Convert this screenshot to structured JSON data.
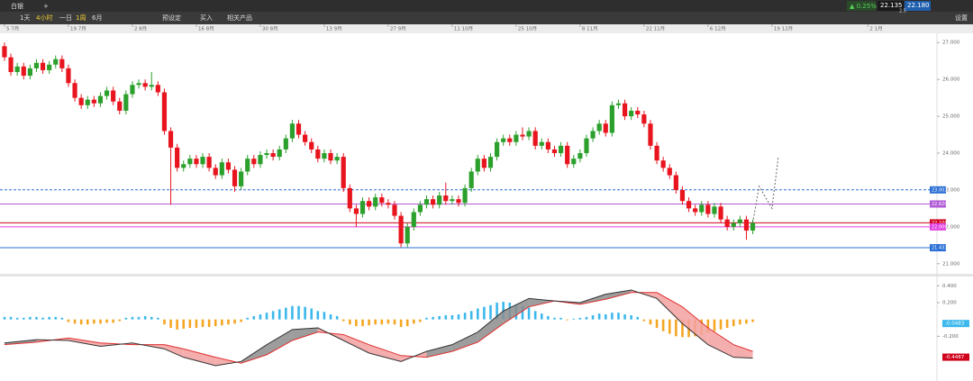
{
  "toolbar": {
    "symbol": "白银",
    "plus": "+",
    "intervals": [
      "1天",
      "4小时",
      "一日",
      "1周",
      "6月"
    ],
    "menu": [
      "预设定",
      "买入",
      "相关产品"
    ],
    "change": "▲ 0.25%",
    "sell": "22.135",
    "buy": "22.180",
    "spread": "2.5",
    "settings": "设置"
  },
  "chart_data": [
    {
      "type": "candlestick",
      "up_color": "#2ca02c",
      "down_color": "#e8141e",
      "xlim": [
        -0.7,
        145.8
      ],
      "xticks": [
        {
          "value": 0,
          "label": "5 7月"
        },
        {
          "value": 10,
          "label": "19 7月"
        },
        {
          "value": 20,
          "label": "2 8月"
        },
        {
          "value": 30,
          "label": "16 8月"
        },
        {
          "value": 40,
          "label": "30 8月"
        },
        {
          "value": 50,
          "label": "13 9月"
        },
        {
          "value": 60,
          "label": "27 9月"
        },
        {
          "value": 70,
          "label": "11 10月"
        },
        {
          "value": 80,
          "label": "25 10月"
        },
        {
          "value": 90,
          "label": "8 11月"
        },
        {
          "value": 100,
          "label": "22 11月"
        },
        {
          "value": 110,
          "label": "6 12月"
        },
        {
          "value": 120,
          "label": "19 12月"
        },
        {
          "value": 135,
          "label": "2 1月"
        }
      ],
      "ylim": [
        20.75,
        27.25
      ],
      "yticks": [
        {
          "value": 27,
          "label": "27.000"
        },
        {
          "value": 26,
          "label": "26.000"
        },
        {
          "value": 25,
          "label": "25.000"
        },
        {
          "value": 24,
          "label": "24.000"
        },
        {
          "value": 23,
          "label": "23.000"
        },
        {
          "value": 22,
          "label": "22.000"
        },
        {
          "value": 21,
          "label": "21.000"
        }
      ],
      "open": [
        26.9,
        26.6,
        26.2,
        26.35,
        26.1,
        26.3,
        26.45,
        26.25,
        26.4,
        26.55,
        26.3,
        25.9,
        25.5,
        25.3,
        25.45,
        25.35,
        25.55,
        25.7,
        25.4,
        25.15,
        25.6,
        25.85,
        25.9,
        25.8,
        25.85,
        25.65,
        24.6,
        24.15,
        23.6,
        23.7,
        23.85,
        23.7,
        23.9,
        23.6,
        23.4,
        23.75,
        23.55,
        23.1,
        23.5,
        23.85,
        23.7,
        23.95,
        24.0,
        23.9,
        24.1,
        24.4,
        24.8,
        24.5,
        24.3,
        24.1,
        23.85,
        24.0,
        23.8,
        23.9,
        23.05,
        22.5,
        22.35,
        22.7,
        22.55,
        22.8,
        22.65,
        22.6,
        22.3,
        21.55,
        22.0,
        22.4,
        22.6,
        22.75,
        22.6,
        22.85,
        22.7,
        22.75,
        22.65,
        23.05,
        23.5,
        23.85,
        23.6,
        23.9,
        24.3,
        24.4,
        24.3,
        24.5,
        24.45,
        24.6,
        24.2,
        24.3,
        24.1,
        24.0,
        24.2,
        23.7,
        23.85,
        24.0,
        24.4,
        24.6,
        24.8,
        24.55,
        25.3,
        25.35,
        25.0,
        25.15,
        25.05,
        24.8,
        24.2,
        23.8,
        23.6,
        23.4,
        23.0,
        22.7,
        22.5,
        22.4,
        22.6,
        22.35,
        22.55,
        22.2,
        22.0,
        22.1,
        22.2,
        21.9
      ],
      "high": [
        27.0,
        26.7,
        26.45,
        26.45,
        26.4,
        26.55,
        26.55,
        26.5,
        26.65,
        26.65,
        26.4,
        26.0,
        25.6,
        25.55,
        25.55,
        25.65,
        25.8,
        25.8,
        25.5,
        25.7,
        25.95,
        26.0,
        26.0,
        26.2,
        25.95,
        25.75,
        24.7,
        24.25,
        23.8,
        23.95,
        23.95,
        24.0,
        24.0,
        23.7,
        23.85,
        23.85,
        23.65,
        23.6,
        23.95,
        23.95,
        24.05,
        24.1,
        24.1,
        24.2,
        24.5,
        24.9,
        24.9,
        24.6,
        24.4,
        24.2,
        24.1,
        24.1,
        24.0,
        24.0,
        23.15,
        22.6,
        22.8,
        22.8,
        22.9,
        22.9,
        22.75,
        22.7,
        22.4,
        22.1,
        22.5,
        22.7,
        22.85,
        22.85,
        22.95,
        23.2,
        22.85,
        22.85,
        23.15,
        23.6,
        23.95,
        23.95,
        24.0,
        24.4,
        24.5,
        24.5,
        24.6,
        24.7,
        24.7,
        24.7,
        24.4,
        24.4,
        24.2,
        24.3,
        24.3,
        23.95,
        24.1,
        24.5,
        24.7,
        24.9,
        24.9,
        25.4,
        25.45,
        25.45,
        25.25,
        25.25,
        25.15,
        24.9,
        24.3,
        23.9,
        23.7,
        23.5,
        23.1,
        22.8,
        22.6,
        22.7,
        22.7,
        22.65,
        22.65,
        22.3,
        22.2,
        22.3,
        22.3,
        22.2
      ],
      "low": [
        26.5,
        26.1,
        26.1,
        26.0,
        26.0,
        26.2,
        26.15,
        26.15,
        26.3,
        26.2,
        25.8,
        25.4,
        25.2,
        25.2,
        25.25,
        25.25,
        25.45,
        25.3,
        25.05,
        25.05,
        25.5,
        25.75,
        25.7,
        25.7,
        25.55,
        24.5,
        22.6,
        23.5,
        23.5,
        23.6,
        23.6,
        23.6,
        23.5,
        23.3,
        23.3,
        23.45,
        22.95,
        23.0,
        23.4,
        23.6,
        23.6,
        23.85,
        23.8,
        23.8,
        24.0,
        24.3,
        24.4,
        24.2,
        24.0,
        23.75,
        23.75,
        23.7,
        23.7,
        22.95,
        22.4,
        22.0,
        22.25,
        22.45,
        22.45,
        22.55,
        22.5,
        22.2,
        21.45,
        21.45,
        21.9,
        22.3,
        22.5,
        22.5,
        22.5,
        22.6,
        22.6,
        22.55,
        22.55,
        22.95,
        23.4,
        23.5,
        23.5,
        23.8,
        24.2,
        24.2,
        24.2,
        24.35,
        24.35,
        24.1,
        24.1,
        24.0,
        23.9,
        23.9,
        23.6,
        23.6,
        23.75,
        23.9,
        24.3,
        24.5,
        24.45,
        24.45,
        25.2,
        24.9,
        24.9,
        24.95,
        24.7,
        24.1,
        23.7,
        23.5,
        23.3,
        22.9,
        22.6,
        22.4,
        22.3,
        22.3,
        22.25,
        22.25,
        22.1,
        21.9,
        21.9,
        22.0,
        21.65,
        21.8
      ],
      "close": [
        26.6,
        26.2,
        26.35,
        26.1,
        26.3,
        26.45,
        26.25,
        26.4,
        26.55,
        26.3,
        25.9,
        25.5,
        25.3,
        25.45,
        25.35,
        25.55,
        25.7,
        25.4,
        25.15,
        25.6,
        25.85,
        25.9,
        25.8,
        25.85,
        25.65,
        24.6,
        24.15,
        23.6,
        23.7,
        23.85,
        23.7,
        23.9,
        23.6,
        23.4,
        23.75,
        23.55,
        23.1,
        23.5,
        23.85,
        23.7,
        23.95,
        24.0,
        23.9,
        24.1,
        24.4,
        24.8,
        24.5,
        24.3,
        24.1,
        23.85,
        24.0,
        23.8,
        23.9,
        23.05,
        22.5,
        22.35,
        22.7,
        22.55,
        22.8,
        22.65,
        22.6,
        22.3,
        21.55,
        22.0,
        22.4,
        22.6,
        22.75,
        22.6,
        22.85,
        22.7,
        22.75,
        22.65,
        23.05,
        23.5,
        23.85,
        23.6,
        23.9,
        24.3,
        24.4,
        24.3,
        24.5,
        24.45,
        24.6,
        24.2,
        24.3,
        24.1,
        24.0,
        24.2,
        23.7,
        23.85,
        24.0,
        24.4,
        24.6,
        24.8,
        24.55,
        25.3,
        25.35,
        25.0,
        25.15,
        25.05,
        24.8,
        24.2,
        23.8,
        23.6,
        23.4,
        23.0,
        22.7,
        22.5,
        22.4,
        22.6,
        22.35,
        22.55,
        22.2,
        22.0,
        22.1,
        22.2,
        21.9,
        22.11
      ],
      "projection": {
        "x": [
          117,
          118,
          120,
          121
        ],
        "values": [
          22.11,
          23.1,
          22.5,
          23.9
        ]
      },
      "levels": [
        {
          "value": 23.003,
          "label": "23.003",
          "color": "#2b6fd6",
          "style": "dashed"
        },
        {
          "value": 22.62,
          "label": "22.620",
          "color": "#b05ad6",
          "style": "solid"
        },
        {
          "value": 22.108,
          "label": "22.108",
          "color": "#d0021b",
          "style": "solid"
        },
        {
          "value": 22.0,
          "label": "22.000",
          "color": "#e040e0",
          "style": "solid"
        },
        {
          "value": 21.433,
          "label": "21.433",
          "color": "#2b6fd6",
          "style": "solid"
        }
      ]
    },
    {
      "type": "macd",
      "hist_up_color": "#3cb8ec",
      "hist_down_color": "#f5a623",
      "dif_color": "#333333",
      "dea_color": "#e03030",
      "ylim": [
        -0.7,
        0.5
      ],
      "yticks": [
        {
          "value": 0.4,
          "label": "0.400"
        },
        {
          "value": 0.2,
          "label": "0.200"
        },
        {
          "value": -0.2,
          "label": "-0.200"
        }
      ],
      "hist": [
        0.03,
        0.03,
        0.02,
        0.02,
        0.03,
        0.03,
        0.02,
        0.03,
        0.03,
        0.02,
        -0.03,
        -0.05,
        -0.06,
        -0.06,
        -0.05,
        -0.05,
        -0.04,
        -0.04,
        -0.02,
        0.02,
        0.03,
        0.03,
        0.04,
        0.03,
        0.02,
        -0.06,
        -0.1,
        -0.12,
        -0.11,
        -0.1,
        -0.1,
        -0.09,
        -0.09,
        -0.08,
        -0.07,
        -0.06,
        -0.05,
        -0.03,
        0.02,
        0.04,
        0.06,
        0.08,
        0.1,
        0.12,
        0.14,
        0.16,
        0.16,
        0.15,
        0.13,
        0.1,
        0.09,
        0.06,
        0.04,
        -0.02,
        -0.06,
        -0.08,
        -0.08,
        -0.07,
        -0.06,
        -0.06,
        -0.05,
        -0.06,
        -0.09,
        -0.08,
        -0.05,
        -0.03,
        0.02,
        0.03,
        0.04,
        0.05,
        0.05,
        0.06,
        0.08,
        0.1,
        0.13,
        0.15,
        0.17,
        0.2,
        0.21,
        0.2,
        0.18,
        0.16,
        0.14,
        0.1,
        0.07,
        0.04,
        0.02,
        0.02,
        -0.01,
        0.01,
        0.02,
        0.03,
        0.05,
        0.07,
        0.06,
        0.08,
        0.08,
        0.06,
        0.05,
        0.03,
        -0.02,
        -0.06,
        -0.1,
        -0.14,
        -0.17,
        -0.2,
        -0.21,
        -0.21,
        -0.2,
        -0.18,
        -0.16,
        -0.14,
        -0.12,
        -0.1,
        -0.08,
        -0.06,
        -0.05,
        -0.03
      ],
      "x": [
        0,
        5,
        10,
        15,
        20,
        25,
        28,
        33,
        37,
        41,
        45,
        49,
        53,
        57,
        62,
        66,
        70,
        74,
        78,
        82,
        86,
        90,
        94,
        98,
        102,
        106,
        110,
        114,
        117
      ],
      "dif": [
        -0.28,
        -0.24,
        -0.25,
        -0.32,
        -0.28,
        -0.35,
        -0.45,
        -0.55,
        -0.5,
        -0.3,
        -0.12,
        -0.1,
        -0.25,
        -0.4,
        -0.5,
        -0.38,
        -0.3,
        -0.15,
        0.1,
        0.25,
        0.22,
        0.2,
        0.3,
        0.35,
        0.25,
        -0.05,
        -0.3,
        -0.45,
        -0.46
      ],
      "dea": [
        -0.3,
        -0.27,
        -0.22,
        -0.28,
        -0.3,
        -0.3,
        -0.35,
        -0.45,
        -0.52,
        -0.42,
        -0.25,
        -0.15,
        -0.18,
        -0.3,
        -0.43,
        -0.45,
        -0.38,
        -0.27,
        -0.05,
        0.15,
        0.22,
        0.18,
        0.24,
        0.32,
        0.32,
        0.15,
        -0.1,
        -0.3,
        -0.38
      ],
      "tags": [
        {
          "value": -0.0483,
          "color": "#3cb8ec"
        },
        {
          "value": -0.4487,
          "color": "#d0021b"
        }
      ]
    }
  ]
}
